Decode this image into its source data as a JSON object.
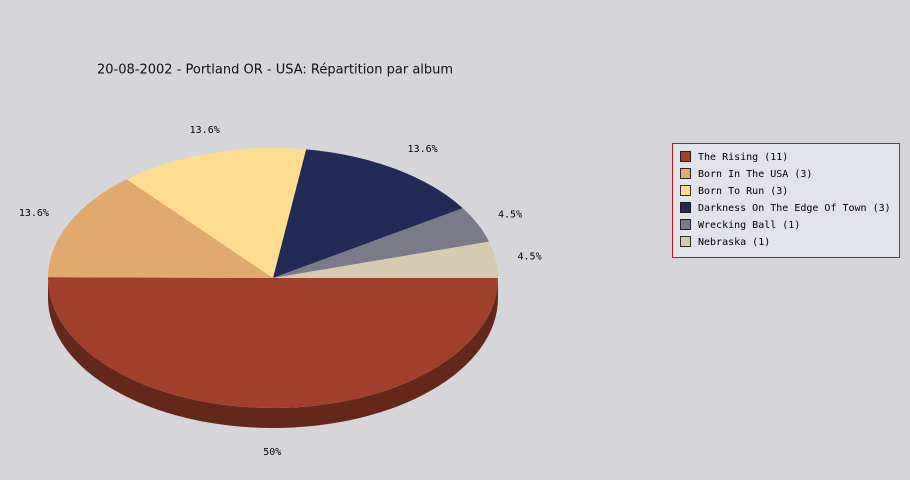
{
  "chart_data": {
    "type": "pie",
    "title": "20-08-2002 - Portland OR - USA:  Répartition par album",
    "categories": [
      "The Rising (11)",
      "Born In The USA (3)",
      "Born To Run (3)",
      "Darkness On The Edge Of Town (3)",
      "Wrecking Ball (1)",
      "Nebraska (1)"
    ],
    "values": [
      50,
      13.6,
      13.6,
      13.6,
      4.5,
      4.5
    ],
    "value_labels": [
      "50%",
      "13.6%",
      "13.6%",
      "13.6%",
      "4.5%",
      "4.5%"
    ],
    "colors": [
      "#a0402a",
      "#e0aa6e",
      "#fedd90",
      "#202a55",
      "#7a7a88",
      "#d6cab0"
    ],
    "legend": "right"
  }
}
